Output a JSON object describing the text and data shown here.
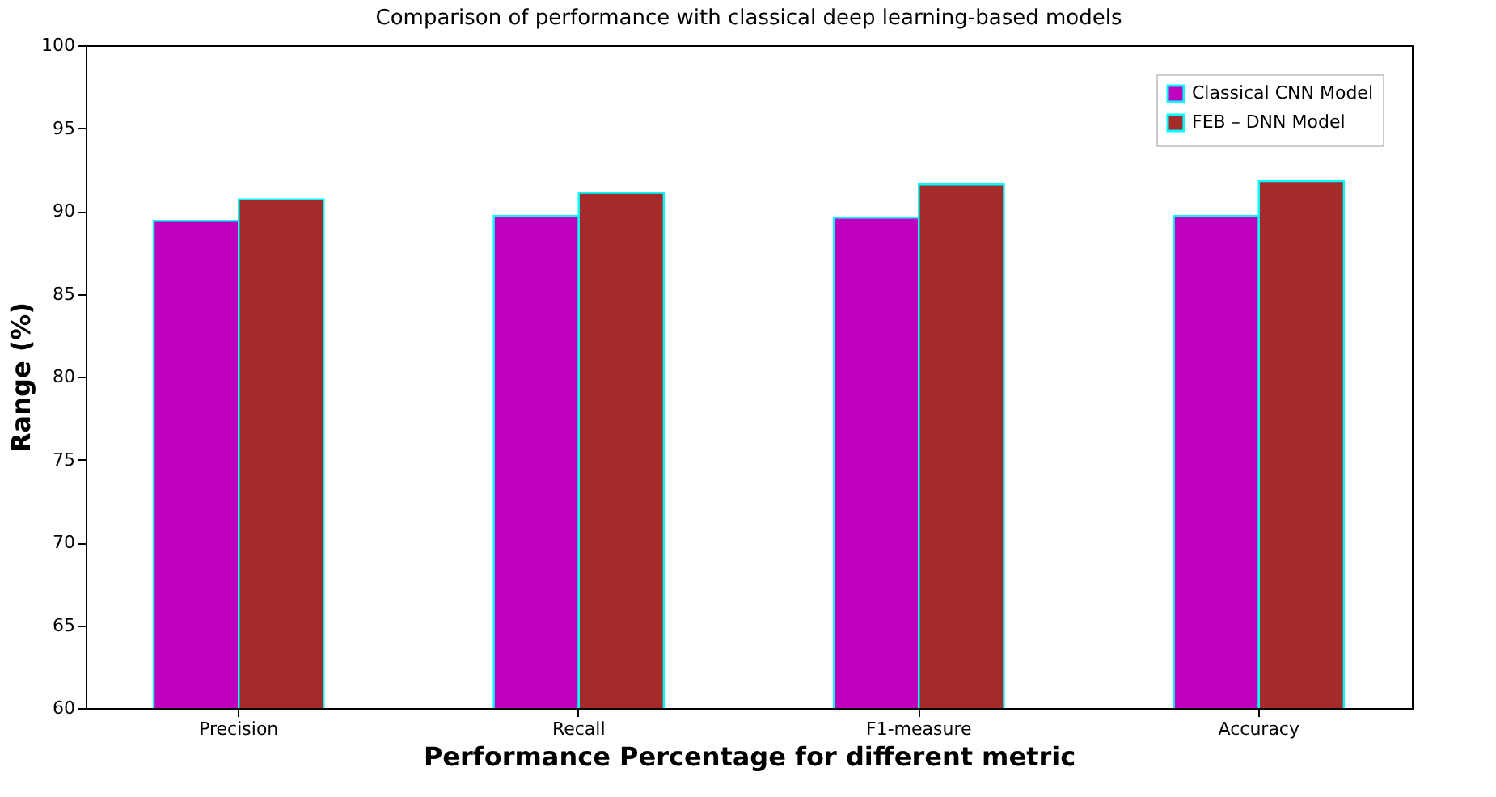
{
  "chart_data": {
    "type": "bar",
    "title": "Comparison of performance with classical deep learning-based models",
    "xlabel": "Performance Percentage for different metric",
    "ylabel": "Range (%)",
    "categories": [
      "Precision",
      "Recall",
      "F1-measure",
      "Accuracy"
    ],
    "series": [
      {
        "name": "Classical CNN Model",
        "color": "#bf00bf",
        "values": [
          89.4,
          89.7,
          89.6,
          89.7
        ]
      },
      {
        "name": "FEB – DNN Model",
        "color": "#a52a2a",
        "values": [
          90.7,
          91.1,
          91.6,
          91.8
        ]
      }
    ],
    "ylim": [
      60,
      100
    ],
    "yticks": [
      60,
      65,
      70,
      75,
      80,
      85,
      90,
      95,
      100
    ],
    "grid": false,
    "legend": "top right"
  }
}
